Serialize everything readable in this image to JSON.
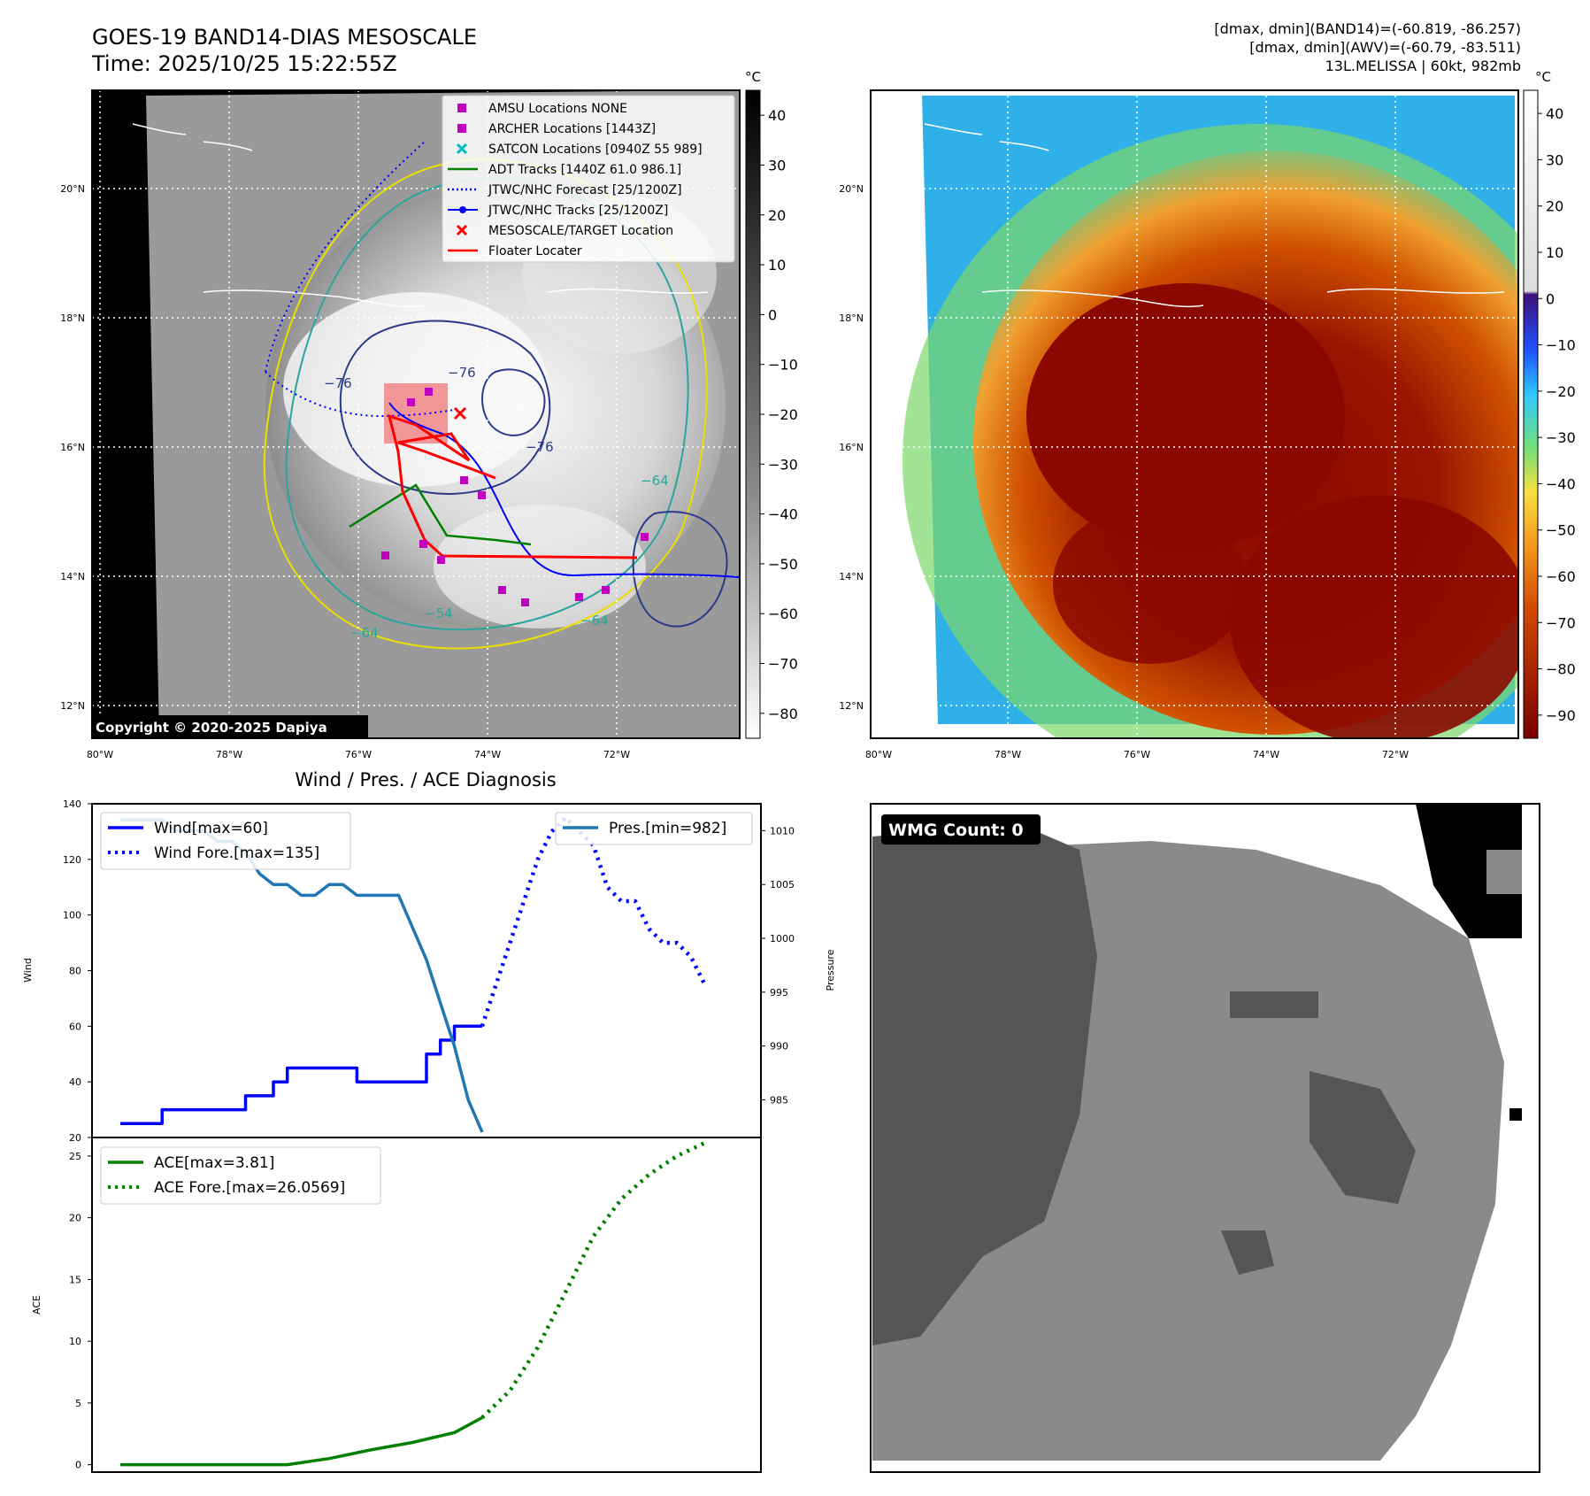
{
  "header": {
    "title_line1": "GOES-19 BAND14-DIAS MESOSCALE",
    "title_line2": "Time: 2025/10/25 15:22:55Z",
    "right_line1": "[dmax, dmin](BAND14)=(-60.819, -86.257)",
    "right_line2": "[dmax, dmin](AWV)=(-60.79, -83.511)",
    "right_line3": "13L.MELISSA | 60kt, 982mb"
  },
  "map": {
    "lon_ticks": [
      "80°W",
      "78°W",
      "76°W",
      "74°W",
      "72°W"
    ],
    "lat_ticks": [
      "20°N",
      "18°N",
      "16°N",
      "14°N",
      "12°N"
    ],
    "contour_labels": [
      "−76",
      "−76",
      "−76",
      "−64",
      "−64",
      "−64",
      "−54"
    ],
    "copyright": "Copyright © 2020-2025 Dapiya"
  },
  "left_colorbar": {
    "unit": "°C",
    "ticks": [
      "40",
      "30",
      "20",
      "10",
      "0",
      "−10",
      "−20",
      "−30",
      "−40",
      "−50",
      "−60",
      "−70",
      "−80"
    ]
  },
  "right_colorbar": {
    "unit": "°C",
    "ticks": [
      "40",
      "30",
      "20",
      "10",
      "0",
      "−10",
      "−20",
      "−30",
      "−40",
      "−50",
      "−60",
      "−70",
      "−80",
      "−90"
    ]
  },
  "legend": [
    {
      "label": "AMSU Locations NONE",
      "marker": "square",
      "color": "#bf00bf"
    },
    {
      "label": "ARCHER Locations [1443Z]",
      "marker": "square",
      "color": "#bf00bf"
    },
    {
      "label": "SATCON Locations [0940Z 55 989]",
      "marker": "x",
      "color": "#00bfbf"
    },
    {
      "label": "ADT Tracks [1440Z 61.0 986.1]",
      "marker": "line",
      "color": "#008000"
    },
    {
      "label": "JTWC/NHC Forecast [25/1200Z]",
      "marker": "dotted",
      "color": "#0000ff"
    },
    {
      "label": "JTWC/NHC Tracks [25/1200Z]",
      "marker": "line-dot",
      "color": "#0000ff"
    },
    {
      "label": "MESOSCALE/TARGET Location",
      "marker": "x",
      "color": "#ff0000"
    },
    {
      "label": "Floater Locater",
      "marker": "line",
      "color": "#ff0000"
    }
  ],
  "wmg": {
    "label": "WMG Count: 0"
  },
  "chart_data": [
    {
      "type": "line",
      "title": "Wind / Pres. / ACE Diagnosis",
      "ylabel": "Wind",
      "ylim": [
        20,
        140
      ],
      "yticks": [
        "140",
        "120",
        "100",
        "80",
        "60",
        "40",
        "20"
      ],
      "y2label": "Pressure",
      "y2lim": [
        981.5,
        1012.5
      ],
      "y2ticks": [
        "1010",
        "1005",
        "1000",
        "995",
        "990",
        "985"
      ],
      "series": [
        {
          "name": "Wind[max=60]",
          "color": "#0000ff",
          "style": "solid",
          "x": [
            0,
            1,
            2,
            3,
            4,
            5,
            6,
            7,
            8,
            9,
            10,
            11,
            12,
            13,
            14,
            15,
            16,
            17,
            18,
            19,
            20,
            21,
            22,
            23,
            24,
            25,
            26
          ],
          "values": [
            25,
            25,
            25,
            30,
            30,
            30,
            30,
            30,
            30,
            35,
            35,
            40,
            45,
            45,
            45,
            45,
            45,
            40,
            40,
            40,
            40,
            40,
            50,
            55,
            60,
            60,
            60
          ]
        },
        {
          "name": "Wind Fore.[max=135]",
          "color": "#0000ff",
          "style": "dotted",
          "x": [
            26,
            27,
            28,
            29,
            30,
            31,
            32,
            33,
            34,
            35,
            36,
            37,
            38,
            39,
            40,
            41,
            42
          ],
          "values": [
            60,
            75,
            90,
            105,
            120,
            130,
            135,
            130,
            125,
            110,
            105,
            105,
            95,
            90,
            90,
            85,
            75
          ]
        },
        {
          "name": "Pres.[min=982]",
          "color": "#1f77b4",
          "style": "solid",
          "axis": "right",
          "x": [
            0,
            1,
            2,
            3,
            4,
            5,
            6,
            7,
            8,
            9,
            10,
            11,
            12,
            13,
            14,
            15,
            16,
            17,
            18,
            19,
            20,
            21,
            22,
            23,
            24,
            25,
            26
          ],
          "values": [
            1011,
            1011,
            1011,
            1011,
            1010,
            1010,
            1010,
            1009,
            1009,
            1008,
            1006,
            1005,
            1005,
            1004,
            1004,
            1005,
            1005,
            1004,
            1004,
            1004,
            1004,
            1001,
            998,
            994,
            990,
            985,
            982
          ]
        }
      ]
    },
    {
      "type": "line",
      "ylabel": "ACE",
      "ylim": [
        -0.6,
        26.5
      ],
      "yticks": [
        "25",
        "20",
        "15",
        "10",
        "5",
        "0"
      ],
      "series": [
        {
          "name": "ACE[max=3.81]",
          "color": "#008000",
          "style": "solid",
          "x": [
            0,
            3,
            6,
            9,
            12,
            15,
            18,
            21,
            24,
            26
          ],
          "values": [
            0,
            0,
            0,
            0,
            0,
            0.5,
            1.2,
            1.8,
            2.6,
            3.81
          ]
        },
        {
          "name": "ACE Fore.[max=26.0569]",
          "color": "#008000",
          "style": "dotted",
          "x": [
            26,
            28,
            30,
            32,
            34,
            36,
            38,
            40,
            42
          ],
          "values": [
            3.81,
            6,
            9.5,
            14,
            18.5,
            21.5,
            23.5,
            25,
            26.06
          ]
        }
      ]
    }
  ]
}
